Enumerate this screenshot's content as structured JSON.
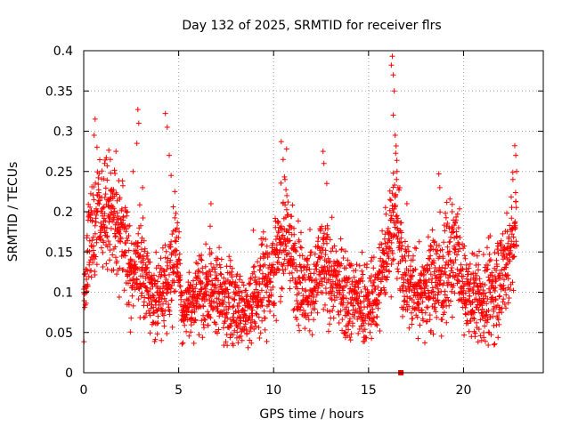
{
  "chart_data": {
    "type": "scatter",
    "title": "Day 132 of 2025, SRMTID for receiver flrs",
    "xlabel": "GPS time / hours",
    "ylabel": "SRMTID / TECUs",
    "xlim": [
      0,
      24.2
    ],
    "ylim": [
      0,
      0.4
    ],
    "x_ticks": [
      0,
      5,
      10,
      15,
      20
    ],
    "x_tick_labels": [
      "0",
      "5",
      "10",
      "15",
      "20"
    ],
    "y_ticks": [
      0,
      0.05,
      0.1,
      0.15,
      0.2,
      0.25,
      0.3,
      0.35,
      0.4
    ],
    "y_tick_labels": [
      "0",
      "0.05",
      "0.1",
      "0.15",
      "0.2",
      "0.25",
      "0.3",
      "0.35",
      "0.4"
    ],
    "grid": true,
    "marker": "plus",
    "color": "#ff0000",
    "sample_interval_hours": 0.0083,
    "zero_marker": {
      "x": 16.7,
      "y": 0,
      "color": "#ff0000"
    },
    "baseline_profile": [
      {
        "x": 0.0,
        "y": 0.09,
        "spread": 0.02
      },
      {
        "x": 0.3,
        "y": 0.16,
        "spread": 0.03
      },
      {
        "x": 0.8,
        "y": 0.2,
        "spread": 0.03
      },
      {
        "x": 1.5,
        "y": 0.2,
        "spread": 0.03
      },
      {
        "x": 2.0,
        "y": 0.17,
        "spread": 0.03
      },
      {
        "x": 2.5,
        "y": 0.12,
        "spread": 0.025
      },
      {
        "x": 3.0,
        "y": 0.14,
        "spread": 0.03
      },
      {
        "x": 3.5,
        "y": 0.1,
        "spread": 0.025
      },
      {
        "x": 4.0,
        "y": 0.09,
        "spread": 0.025
      },
      {
        "x": 4.5,
        "y": 0.12,
        "spread": 0.025
      },
      {
        "x": 4.9,
        "y": 0.16,
        "spread": 0.03
      },
      {
        "x": 5.2,
        "y": 0.07,
        "spread": 0.015
      },
      {
        "x": 6.0,
        "y": 0.1,
        "spread": 0.025
      },
      {
        "x": 7.0,
        "y": 0.095,
        "spread": 0.025
      },
      {
        "x": 8.0,
        "y": 0.085,
        "spread": 0.025
      },
      {
        "x": 8.7,
        "y": 0.075,
        "spread": 0.02
      },
      {
        "x": 9.5,
        "y": 0.11,
        "spread": 0.03
      },
      {
        "x": 10.2,
        "y": 0.14,
        "spread": 0.03
      },
      {
        "x": 10.6,
        "y": 0.18,
        "spread": 0.035
      },
      {
        "x": 11.2,
        "y": 0.12,
        "spread": 0.03
      },
      {
        "x": 12.0,
        "y": 0.1,
        "spread": 0.025
      },
      {
        "x": 12.5,
        "y": 0.13,
        "spread": 0.03
      },
      {
        "x": 13.0,
        "y": 0.12,
        "spread": 0.03
      },
      {
        "x": 14.0,
        "y": 0.095,
        "spread": 0.025
      },
      {
        "x": 14.5,
        "y": 0.09,
        "spread": 0.025
      },
      {
        "x": 15.0,
        "y": 0.08,
        "spread": 0.02
      },
      {
        "x": 15.5,
        "y": 0.1,
        "spread": 0.025
      },
      {
        "x": 16.0,
        "y": 0.16,
        "spread": 0.03
      },
      {
        "x": 16.4,
        "y": 0.2,
        "spread": 0.035
      },
      {
        "x": 16.8,
        "y": 0.12,
        "spread": 0.03
      },
      {
        "x": 17.5,
        "y": 0.1,
        "spread": 0.025
      },
      {
        "x": 18.3,
        "y": 0.11,
        "spread": 0.03
      },
      {
        "x": 19.0,
        "y": 0.12,
        "spread": 0.03
      },
      {
        "x": 19.6,
        "y": 0.15,
        "spread": 0.035
      },
      {
        "x": 20.0,
        "y": 0.1,
        "spread": 0.025
      },
      {
        "x": 21.0,
        "y": 0.085,
        "spread": 0.025
      },
      {
        "x": 21.6,
        "y": 0.1,
        "spread": 0.03
      },
      {
        "x": 22.3,
        "y": 0.14,
        "spread": 0.035
      },
      {
        "x": 22.8,
        "y": 0.18,
        "spread": 0.04
      }
    ],
    "peaks": [
      {
        "x": 0.6,
        "y": 0.315
      },
      {
        "x": 0.55,
        "y": 0.295
      },
      {
        "x": 0.7,
        "y": 0.28
      },
      {
        "x": 1.1,
        "y": 0.26
      },
      {
        "x": 1.4,
        "y": 0.265
      },
      {
        "x": 1.7,
        "y": 0.275
      },
      {
        "x": 2.6,
        "y": 0.25
      },
      {
        "x": 2.8,
        "y": 0.285
      },
      {
        "x": 2.85,
        "y": 0.327
      },
      {
        "x": 2.9,
        "y": 0.31
      },
      {
        "x": 3.1,
        "y": 0.23
      },
      {
        "x": 4.3,
        "y": 0.322
      },
      {
        "x": 4.4,
        "y": 0.305
      },
      {
        "x": 4.5,
        "y": 0.27
      },
      {
        "x": 4.6,
        "y": 0.245
      },
      {
        "x": 4.8,
        "y": 0.225
      },
      {
        "x": 6.7,
        "y": 0.21
      },
      {
        "x": 10.4,
        "y": 0.287
      },
      {
        "x": 10.5,
        "y": 0.265
      },
      {
        "x": 10.6,
        "y": 0.24
      },
      {
        "x": 10.7,
        "y": 0.22
      },
      {
        "x": 12.6,
        "y": 0.275
      },
      {
        "x": 12.65,
        "y": 0.26
      },
      {
        "x": 12.8,
        "y": 0.235
      },
      {
        "x": 16.2,
        "y": 0.382
      },
      {
        "x": 16.25,
        "y": 0.393
      },
      {
        "x": 16.3,
        "y": 0.37
      },
      {
        "x": 16.35,
        "y": 0.35
      },
      {
        "x": 16.3,
        "y": 0.32
      },
      {
        "x": 16.4,
        "y": 0.295
      },
      {
        "x": 16.5,
        "y": 0.25
      },
      {
        "x": 16.55,
        "y": 0.23
      },
      {
        "x": 18.7,
        "y": 0.247
      },
      {
        "x": 18.75,
        "y": 0.23
      },
      {
        "x": 19.4,
        "y": 0.2
      },
      {
        "x": 21.4,
        "y": 0.17
      },
      {
        "x": 22.7,
        "y": 0.282
      },
      {
        "x": 22.75,
        "y": 0.27
      },
      {
        "x": 22.8,
        "y": 0.25
      },
      {
        "x": 22.6,
        "y": 0.24
      }
    ]
  }
}
